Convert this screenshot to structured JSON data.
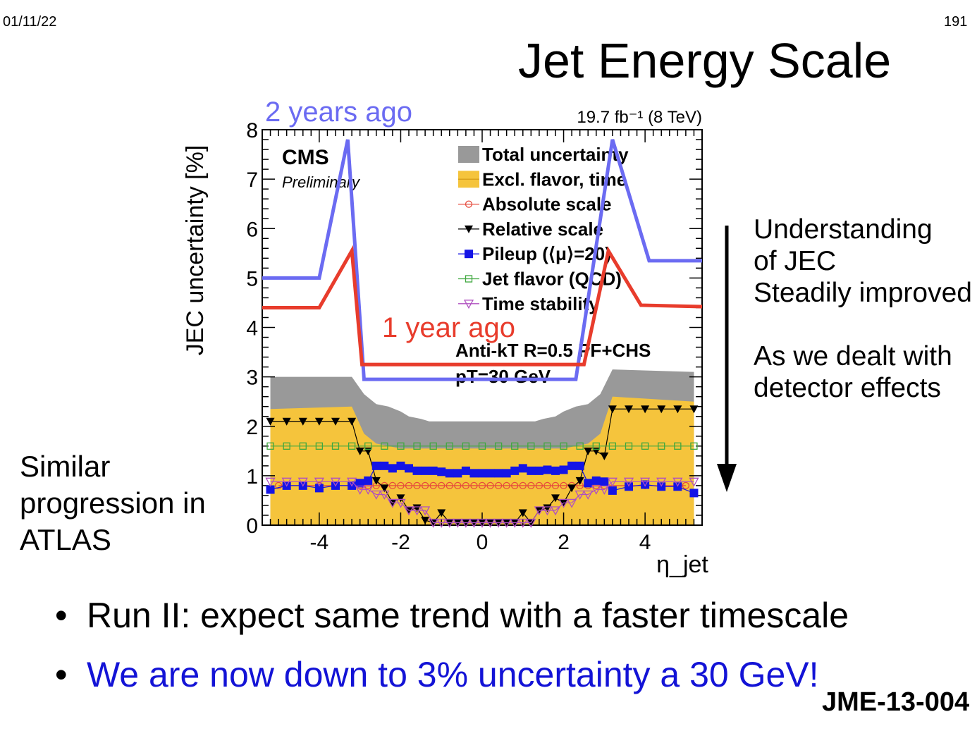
{
  "slide": {
    "date": "01/11/22",
    "number": "191",
    "title": "Jet Energy Scale",
    "side_right": [
      "Understanding",
      "of JEC",
      "Steadily improved",
      "",
      "As we dealt with",
      "detector effects"
    ],
    "side_left": [
      "Similar",
      "progression in",
      "ATLAS"
    ],
    "bullets": [
      "Run II: expect same trend with a faster timescale",
      "We are now down to 3% uncertainty a 30 GeV!"
    ],
    "reference": "JME-13-004",
    "colors": {
      "bullet2": "#1313d6",
      "arrow": "#000000"
    }
  },
  "chart_data": {
    "type": "area",
    "ylabel": "JEC uncertainty [%]",
    "xlabel": "η_jet",
    "xlim": [
      -5.4,
      5.4
    ],
    "ylim": [
      0,
      8
    ],
    "xticks": [
      -4,
      -2,
      0,
      2,
      4
    ],
    "yticks": [
      0,
      1,
      2,
      3,
      4,
      5,
      6,
      7,
      8
    ],
    "lumi_label": "19.7 fb⁻¹ (8 TeV)",
    "experiment": "CMS",
    "status": "Preliminary",
    "algo_label": "Anti-kT R=0.5 PF+CHS",
    "pt_label": "pT=30 GeV",
    "legend": [
      {
        "name": "Total uncertainty",
        "style": "fill",
        "color": "#999999"
      },
      {
        "name": "Excl. flavor, time",
        "style": "fill",
        "color": "#f5c43c"
      },
      {
        "name": "Absolute scale",
        "style": "circle",
        "color": "#e64a3c"
      },
      {
        "name": "Relative scale",
        "style": "tri-down",
        "color": "#000000"
      },
      {
        "name": "Pileup (⟨μ⟩=20)",
        "style": "square",
        "color": "#1414e6"
      },
      {
        "name": "Jet flavor (QCD)",
        "style": "open-square",
        "color": "#3fa83f"
      },
      {
        "name": "Time stability",
        "style": "open-tri-down",
        "color": "#b050c0"
      }
    ],
    "total_band": {
      "x": [
        -5.2,
        -3.2,
        -2.9,
        -2.6,
        -2.3,
        -2.0,
        -1.8,
        -1.5,
        -1.3,
        -1.0,
        -0.5,
        0,
        0.5,
        1.0,
        1.3,
        1.5,
        1.8,
        2.0,
        2.3,
        2.6,
        2.9,
        3.2,
        5.2
      ],
      "y": [
        3.0,
        3.0,
        2.65,
        2.45,
        2.4,
        2.3,
        2.2,
        2.15,
        2.1,
        2.1,
        2.1,
        2.1,
        2.1,
        2.1,
        2.1,
        2.15,
        2.2,
        2.3,
        2.4,
        2.45,
        2.65,
        3.15,
        3.1
      ]
    },
    "excl_band": {
      "x": [
        -5.2,
        -3.2,
        -2.9,
        -2.6,
        -2.3,
        -2.0,
        -1.8,
        -1.5,
        -1.3,
        -1.0,
        -0.5,
        0,
        0.5,
        1.0,
        1.3,
        1.5,
        1.8,
        2.0,
        2.3,
        2.6,
        2.9,
        3.2,
        5.2
      ],
      "y": [
        2.35,
        2.4,
        1.85,
        1.65,
        1.6,
        1.55,
        1.55,
        1.55,
        1.55,
        1.55,
        1.55,
        1.55,
        1.55,
        1.55,
        1.55,
        1.55,
        1.55,
        1.55,
        1.6,
        1.65,
        1.85,
        2.6,
        2.5
      ]
    },
    "series": [
      {
        "name": "Absolute scale",
        "x": [
          -5.0,
          -4.0,
          -3.0,
          -2.8,
          -2.6,
          -2.4,
          -2.2,
          -2.0,
          -1.8,
          -1.6,
          -1.4,
          -1.2,
          -1.0,
          -0.8,
          -0.6,
          -0.4,
          -0.2,
          0,
          0.2,
          0.4,
          0.6,
          0.8,
          1.0,
          1.2,
          1.4,
          1.6,
          1.8,
          2.0,
          2.2,
          2.4,
          2.6,
          2.8,
          3.0,
          4.0,
          5.0
        ],
        "y": [
          0.8,
          0.8,
          0.8,
          0.8,
          0.8,
          0.8,
          0.8,
          0.8,
          0.8,
          0.8,
          0.8,
          0.8,
          0.8,
          0.8,
          0.8,
          0.8,
          0.8,
          0.8,
          0.8,
          0.8,
          0.8,
          0.8,
          0.8,
          0.8,
          0.8,
          0.8,
          0.8,
          0.8,
          0.8,
          0.8,
          0.8,
          0.8,
          0.8,
          0.8,
          0.8
        ]
      },
      {
        "name": "Relative scale",
        "x": [
          -5.2,
          -4.8,
          -4.4,
          -4.0,
          -3.6,
          -3.2,
          -3.0,
          -2.8,
          -2.6,
          -2.4,
          -2.2,
          -2.0,
          -1.8,
          -1.6,
          -1.4,
          -1.2,
          -1.0,
          -0.8,
          -0.6,
          -0.4,
          -0.2,
          0,
          0.2,
          0.4,
          0.6,
          0.8,
          1.0,
          1.2,
          1.4,
          1.6,
          1.8,
          2.0,
          2.2,
          2.4,
          2.6,
          2.8,
          3.0,
          3.2,
          3.6,
          4.0,
          4.4,
          4.8,
          5.2
        ],
        "y": [
          2.1,
          2.1,
          2.1,
          2.1,
          2.1,
          2.1,
          1.5,
          1.5,
          0.9,
          0.75,
          0.45,
          0.55,
          0.3,
          0.35,
          0.1,
          0.05,
          0.25,
          0.05,
          0.05,
          0.05,
          0.05,
          0.05,
          0.05,
          0.05,
          0.05,
          0.05,
          0.25,
          0.05,
          0.3,
          0.35,
          0.55,
          0.45,
          0.75,
          0.9,
          1.5,
          1.5,
          1.4,
          2.35,
          2.35,
          2.35,
          2.35,
          2.35,
          2.35
        ]
      },
      {
        "name": "Pileup (⟨μ⟩=20)",
        "x": [
          -5.2,
          -4.8,
          -4.4,
          -4.0,
          -3.6,
          -3.2,
          -3.0,
          -2.8,
          -2.6,
          -2.4,
          -2.2,
          -2.0,
          -1.8,
          -1.6,
          -1.4,
          -1.2,
          -1.0,
          -0.8,
          -0.6,
          -0.4,
          -0.2,
          0,
          0.2,
          0.4,
          0.6,
          0.8,
          1.0,
          1.2,
          1.4,
          1.6,
          1.8,
          2.0,
          2.2,
          2.4,
          2.6,
          2.8,
          3.0,
          3.2,
          3.6,
          4.0,
          4.4,
          4.8,
          5.2
        ],
        "y": [
          0.72,
          0.8,
          0.8,
          0.75,
          0.8,
          0.8,
          0.85,
          0.9,
          1.2,
          1.2,
          1.15,
          1.2,
          1.15,
          1.1,
          1.1,
          1.1,
          1.08,
          1.05,
          1.05,
          1.1,
          1.05,
          1.05,
          1.05,
          1.05,
          1.05,
          1.1,
          1.15,
          1.1,
          1.1,
          1.12,
          1.1,
          1.12,
          1.2,
          1.2,
          0.85,
          0.9,
          0.88,
          0.7,
          0.78,
          0.82,
          0.78,
          0.78,
          0.65
        ]
      },
      {
        "name": "Jet flavor (QCD)",
        "x": [
          -5.2,
          -4.8,
          -4.4,
          -4.0,
          -3.6,
          -3.2,
          -2.8,
          -2.4,
          -2.0,
          -1.6,
          -1.2,
          -0.8,
          -0.4,
          0,
          0.4,
          0.8,
          1.2,
          1.6,
          2.0,
          2.4,
          2.8,
          3.2,
          3.6,
          4.0,
          4.4,
          4.8,
          5.2
        ],
        "y": [
          1.6,
          1.6,
          1.6,
          1.6,
          1.6,
          1.6,
          1.6,
          1.6,
          1.6,
          1.6,
          1.6,
          1.6,
          1.6,
          1.6,
          1.6,
          1.6,
          1.6,
          1.6,
          1.6,
          1.6,
          1.6,
          1.6,
          1.6,
          1.6,
          1.6,
          1.6,
          1.6
        ]
      },
      {
        "name": "Time stability",
        "x": [
          -5.2,
          -4.8,
          -4.4,
          -4.0,
          -3.6,
          -3.2,
          -3.0,
          -2.8,
          -2.6,
          -2.4,
          -2.2,
          -2.0,
          -1.8,
          -1.6,
          -1.4,
          -1.2,
          -1.0,
          -0.8,
          -0.6,
          -0.4,
          -0.2,
          0,
          0.2,
          0.4,
          0.6,
          0.8,
          1.0,
          1.2,
          1.4,
          1.6,
          1.8,
          2.0,
          2.2,
          2.4,
          2.6,
          2.8,
          3.0,
          3.2,
          3.6,
          4.0,
          4.4,
          4.8,
          5.2
        ],
        "y": [
          0.88,
          0.88,
          0.88,
          0.88,
          0.88,
          0.88,
          0.72,
          0.72,
          0.62,
          0.62,
          0.45,
          0.45,
          0.3,
          0.3,
          0.3,
          0.05,
          0.05,
          0.05,
          0.05,
          0.05,
          0.05,
          0.05,
          0.05,
          0.05,
          0.05,
          0.05,
          0.05,
          0.05,
          0.3,
          0.3,
          0.3,
          0.45,
          0.45,
          0.62,
          0.62,
          0.72,
          0.72,
          0.88,
          0.88,
          0.88,
          0.88,
          0.88,
          0.88
        ]
      }
    ],
    "overlays": [
      {
        "name": "2 years ago",
        "color": "#6b6bf2",
        "x": [
          -5.4,
          -4.0,
          -3.3,
          -2.9,
          2.3,
          3.2,
          4.1,
          5.4
        ],
        "y": [
          5.0,
          5.0,
          7.8,
          2.95,
          2.95,
          7.8,
          5.35,
          5.35
        ]
      },
      {
        "name": "1 year ago",
        "color": "#e83c2c",
        "x": [
          -5.4,
          -4.0,
          -3.2,
          -2.95,
          2.5,
          3.1,
          3.9,
          5.4
        ],
        "y": [
          4.4,
          4.4,
          5.55,
          3.25,
          3.25,
          5.55,
          4.45,
          4.42
        ]
      }
    ]
  }
}
